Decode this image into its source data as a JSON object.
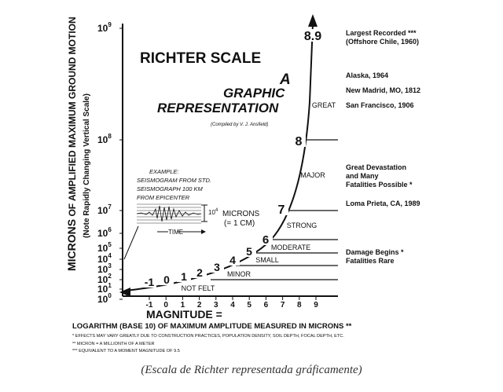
{
  "title": {
    "line1": "RICHTER SCALE",
    "line2": "A",
    "line3": "GRAPHIC",
    "line4": "REPRESENTATION",
    "credit": "(Compiled by V. J. Ansfield)"
  },
  "y_axis": {
    "main_label_big": "MICRONS",
    "main_label_rest": " OF AMPLIFIED MAXIMUM GROUND MOTION",
    "sub_label": "(Note Rapidly Changing Vertical Scale)",
    "ticks": [
      {
        "value": 9,
        "label": "10",
        "exp": "9"
      },
      {
        "value": 8,
        "label": "10",
        "exp": "8"
      },
      {
        "value": 7,
        "label": "10",
        "exp": "7"
      },
      {
        "value": 6,
        "label": "10",
        "exp": "6"
      },
      {
        "value": 5,
        "label": "10",
        "exp": "5"
      },
      {
        "value": 4,
        "label": "10",
        "exp": "4"
      },
      {
        "value": 3,
        "label": "10",
        "exp": "3"
      },
      {
        "value": 2,
        "label": "10",
        "exp": "2"
      },
      {
        "value": 1,
        "label": "10",
        "exp": "1"
      },
      {
        "value": 0,
        "label": "10",
        "exp": "0"
      }
    ]
  },
  "x_axis": {
    "ticks": [
      "-1",
      "0",
      "1",
      "2",
      "3",
      "4",
      "5",
      "6",
      "7",
      "8",
      "9"
    ],
    "magnitude_label": "MAGNITUDE =",
    "log_label": "LOGARITHM (BASE 10) OF MAXIMUM AMPLITUDE MEASURED IN MICRONS **"
  },
  "curve_numbers": [
    "-1",
    "0",
    "1",
    "2",
    "3",
    "4",
    "5",
    "6",
    "7",
    "8",
    "8.9"
  ],
  "bands": [
    {
      "label": "GREAT"
    },
    {
      "label": "MAJOR"
    },
    {
      "label": "STRONG"
    },
    {
      "label": "MODERATE"
    },
    {
      "label": "SMALL"
    },
    {
      "label": "MINOR"
    },
    {
      "label": "NOT FELT"
    }
  ],
  "example": {
    "line1": "EXAMPLE:",
    "line2": "SEISMOGRAM FROM STD.",
    "line3": "SEISMOGRAPH 100 KM",
    "line4": "FROM EPICENTER",
    "amp_label": "10",
    "amp_exp": "4",
    "amp_unit": "MICRONS",
    "amp_equiv": "(= 1 CM)",
    "time_label": "TIME"
  },
  "events": [
    {
      "line1": "Largest Recorded ***",
      "line2": "(Offshore Chile, 1960)"
    },
    {
      "line1": "Alaska, 1964",
      "line2": ""
    },
    {
      "line1": "New Madrid, MO, 1812",
      "line2": ""
    },
    {
      "line1": "San Francisco, 1906",
      "line2": ""
    },
    {
      "line1": "Great Devastation",
      "line2": "and Many",
      "line3": "Fatalities Possible *"
    },
    {
      "line1": "Loma Prieta, CA,  1989",
      "line2": ""
    },
    {
      "line1": "Damage Begins  *",
      "line2": "Fatalities Rare"
    }
  ],
  "footnotes": [
    "* EFFECTS MAY VARY GREATLY DUE TO CONSTRUCTION PRACTICES, POPULATION DENSITY, SOIL DEPTH, FOCAL DEPTH, ETC.",
    "** MICRON = A MILLIONTH OF A METER",
    "*** EQUIVALENT TO A MOMENT MAGNITUDE OF 9.5"
  ],
  "caption": "(Escala de Richter representada gráficamente)"
}
